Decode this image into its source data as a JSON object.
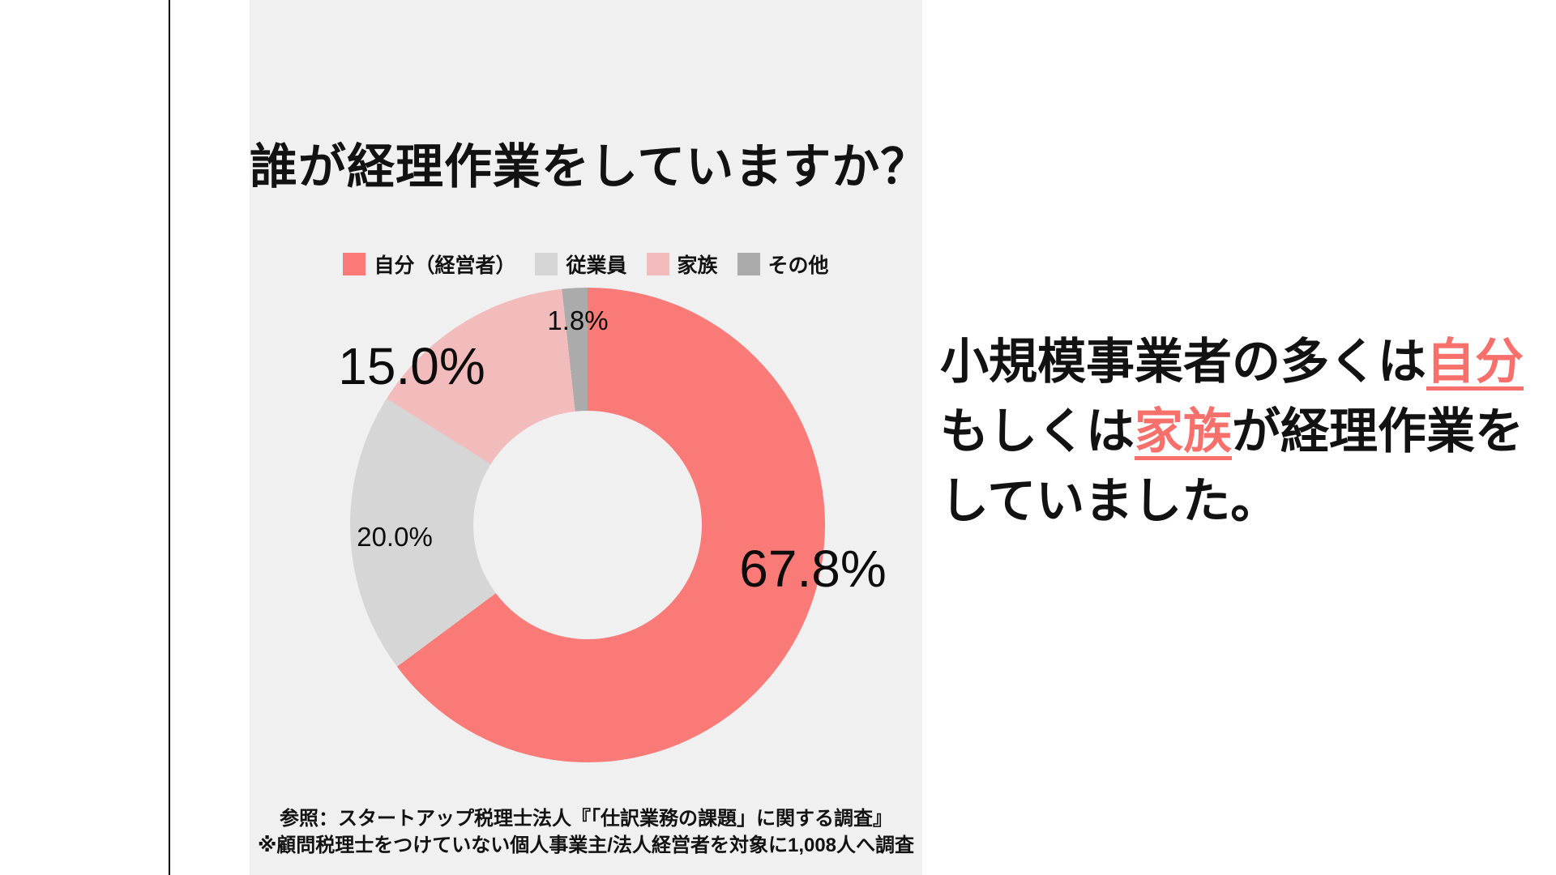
{
  "colors": {
    "page_bg": "#FFFFFF",
    "panel_bg": "#F0F0F0",
    "divider": "#000000",
    "text": "#121212",
    "accent_red": "#F8706C"
  },
  "chart_data": {
    "type": "pie",
    "variant": "donut",
    "title": "誰が経理作業をしていますか？",
    "labels": [
      "自分（経営者）",
      "従業員",
      "家族",
      "その他"
    ],
    "values": [
      67.8,
      20.0,
      15.0,
      1.8
    ],
    "value_labels": [
      "67.8%",
      "20.0%",
      "15.0%",
      "1.8%"
    ],
    "colors": [
      "#FA7A78",
      "#D6D6D6",
      "#F2BCBC",
      "#ABABAB"
    ],
    "start_angle_deg": 0,
    "direction": "clockwise",
    "legend_position": "top",
    "hole_ratio": 0.48
  },
  "source": {
    "line1": "参照：スタートアップ税理士法人『「仕訳業務の課題」に関する調査』",
    "line2": "※顧問税理士をつけていない個人事業主/法人経営者を対象に1,008人へ調査"
  },
  "annotation": {
    "lines": [
      {
        "segments": [
          {
            "text": "小規模事業者の多くは",
            "highlight": false
          },
          {
            "text": "自分",
            "highlight": true
          }
        ]
      },
      {
        "segments": [
          {
            "text": "もしくは",
            "highlight": false
          },
          {
            "text": "家族",
            "highlight": true
          },
          {
            "text": "が経理作業を",
            "highlight": false
          }
        ]
      },
      {
        "segments": [
          {
            "text": "していました。",
            "highlight": false
          }
        ]
      }
    ]
  }
}
